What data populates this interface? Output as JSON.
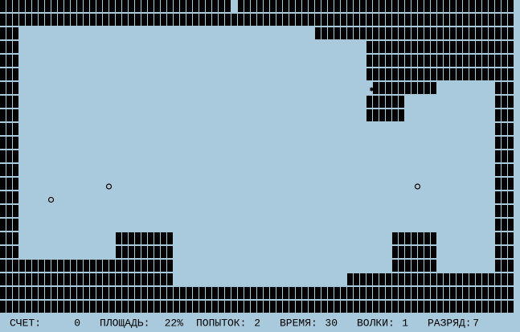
{
  "status": [
    {
      "label": "СЧЕТ:",
      "value": "0"
    },
    {
      "label": "ПЛОЩАДЬ:",
      "value": "22%"
    },
    {
      "label": "ПОПЫТОК:",
      "value": "2"
    },
    {
      "label": "ВРЕМЯ:",
      "value": "30"
    },
    {
      "label": "ВОЛКИ:",
      "value": "1"
    },
    {
      "label": "РАЗРЯД:",
      "value": "7"
    }
  ]
}
